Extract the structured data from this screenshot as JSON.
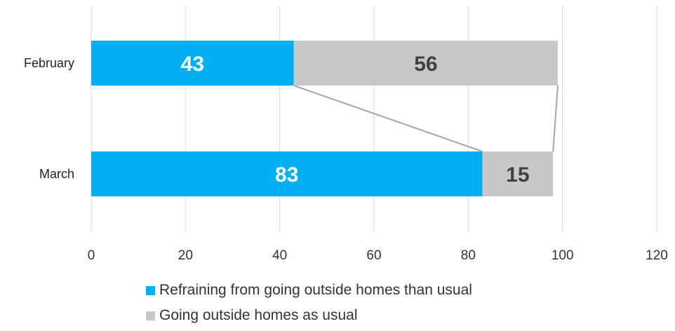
{
  "chart_data": {
    "type": "bar",
    "orientation": "horizontal",
    "stacked": true,
    "categories": [
      "February",
      "March"
    ],
    "series": [
      {
        "name": "Refraining from going outside homes than usual",
        "values": [
          43,
          83
        ],
        "color": "#00b0f0",
        "label_color": "#ffffff"
      },
      {
        "name": "Going outside homes as usual",
        "values": [
          56,
          15
        ],
        "color": "#c8c8c8",
        "label_color": "#404040"
      }
    ],
    "xlim": [
      0,
      120
    ],
    "xticks": [
      "0",
      "20",
      "40",
      "60",
      "80",
      "100",
      "120"
    ],
    "xtick_values": [
      0,
      20,
      40,
      60,
      80,
      100,
      120
    ],
    "grid": true,
    "series_lines": true,
    "legend_position": "bottom",
    "title": "",
    "xlabel": "",
    "ylabel": ""
  }
}
